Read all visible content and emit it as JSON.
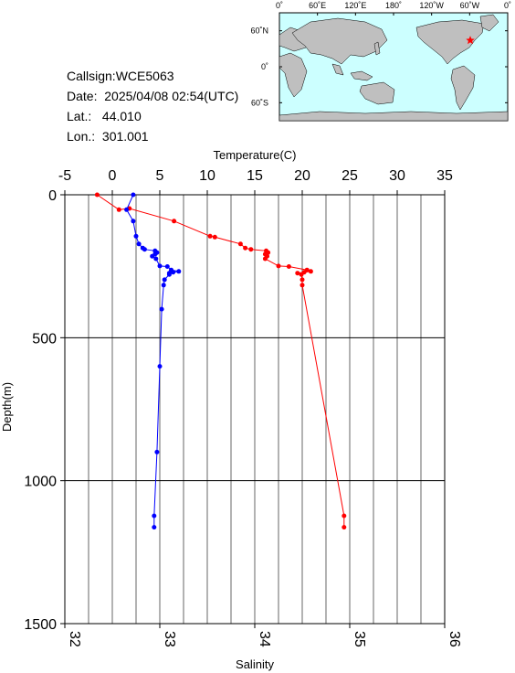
{
  "station": {
    "callsign_label": "Callsign:",
    "callsign": "WCE5063",
    "date_label": "Date:",
    "date": "2025/04/08 02:54(UTC)",
    "lat_label": "Lat.:",
    "lat": "44.010",
    "lon_label": "Lon.:",
    "lon": "301.001"
  },
  "map": {
    "lon_ticks": [
      "0˚",
      "60˚E",
      "120˚E",
      "180˚",
      "120˚W",
      "60˚W",
      "0˚"
    ],
    "lat_ticks": [
      "60˚N",
      "0˚",
      "60˚S"
    ],
    "ocean_color": "#ccffff",
    "land_color": "#bfbfbf",
    "marker_color": "#ff0000",
    "marker_symbol": "star"
  },
  "chart_data": {
    "type": "line",
    "top_axis": {
      "label": "Temperature(C)",
      "range": [
        -5,
        35
      ],
      "ticks": [
        "-5",
        "0",
        "5",
        "10",
        "15",
        "20",
        "25",
        "30",
        "35"
      ]
    },
    "bottom_axis": {
      "label": "Salinity",
      "range": [
        32,
        36
      ],
      "ticks": [
        "32",
        "33",
        "34",
        "35",
        "36"
      ]
    },
    "y_axis": {
      "label": "Depth(m)",
      "range": [
        0,
        1500
      ],
      "inverted": true,
      "ticks": [
        "0",
        "500",
        "1000",
        "1500"
      ]
    },
    "grid": true,
    "series": [
      {
        "color": "#ff0000",
        "axis": "top",
        "points": [
          [
            -1.6,
            0
          ],
          [
            0.7,
            52
          ],
          [
            1.8,
            48
          ],
          [
            6.5,
            92
          ],
          [
            10.3,
            145
          ],
          [
            10.8,
            148
          ],
          [
            13.5,
            172
          ],
          [
            14.0,
            186
          ],
          [
            14.6,
            191
          ],
          [
            16.2,
            196
          ],
          [
            16.4,
            202
          ],
          [
            16.1,
            208
          ],
          [
            16.3,
            215
          ],
          [
            16.1,
            224
          ],
          [
            17.5,
            249
          ],
          [
            18.6,
            251
          ],
          [
            20.5,
            263
          ],
          [
            20.9,
            268
          ],
          [
            19.5,
            274
          ],
          [
            20.2,
            271
          ],
          [
            19.9,
            279
          ],
          [
            20.0,
            297
          ],
          [
            20.0,
            316
          ],
          [
            24.4,
            1123
          ],
          [
            24.4,
            1163
          ]
        ]
      },
      {
        "color": "#0000ff",
        "axis": "bottom",
        "points": [
          [
            32.72,
            0
          ],
          [
            32.65,
            52
          ],
          [
            32.72,
            92
          ],
          [
            32.75,
            145
          ],
          [
            32.78,
            172
          ],
          [
            32.82,
            186
          ],
          [
            32.84,
            191
          ],
          [
            32.95,
            196
          ],
          [
            32.97,
            202
          ],
          [
            32.95,
            208
          ],
          [
            32.92,
            215
          ],
          [
            32.96,
            224
          ],
          [
            33.0,
            249
          ],
          [
            33.08,
            251
          ],
          [
            33.12,
            263
          ],
          [
            33.2,
            268
          ],
          [
            33.1,
            274
          ],
          [
            33.14,
            271
          ],
          [
            33.1,
            279
          ],
          [
            33.05,
            297
          ],
          [
            33.04,
            316
          ],
          [
            33.02,
            400
          ],
          [
            33.0,
            600
          ],
          [
            32.97,
            900
          ],
          [
            32.94,
            1123
          ],
          [
            32.94,
            1163
          ]
        ]
      }
    ]
  }
}
